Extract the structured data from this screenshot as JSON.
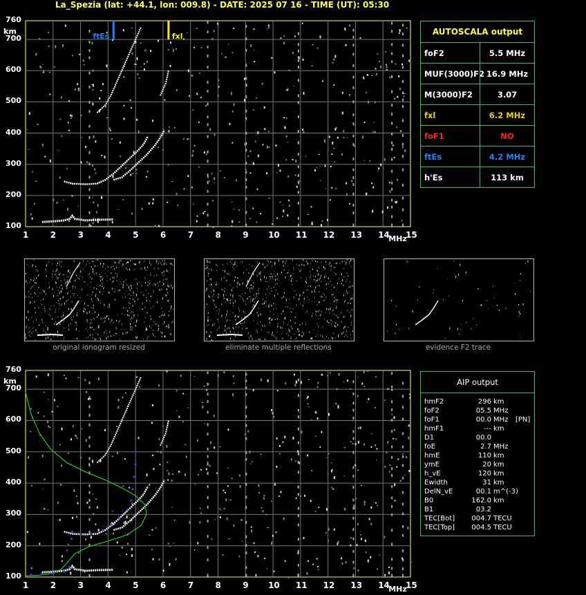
{
  "header": {
    "title": "La_Spezia (lat: +44.1, lon: 009.8) - DATE: 2025 07 16 - TIME (UT): 05:30"
  },
  "axes": {
    "y_unit": "km",
    "x_unit": "MHz",
    "y_ticks": [
      "760",
      "700",
      "600",
      "500",
      "400",
      "300",
      "200",
      "100"
    ],
    "x_ticks": [
      "1",
      "2",
      "3",
      "4",
      "5",
      "6",
      "7",
      "8",
      "9",
      "10",
      "11",
      "12",
      "13",
      "14",
      "15"
    ]
  },
  "markers": {
    "ftEs_label": "ftEs",
    "fxl_label": "fxl",
    "fxl_color": "#ffee00",
    "ftEs_color": "#1e7fff"
  },
  "autoscala": {
    "title": "AUTOSCALA output",
    "rows": [
      {
        "key": "foF2",
        "value": "5.5 MHz",
        "color": "#ffffff"
      },
      {
        "key": "MUF(3000)F2",
        "value": "16.9 MHz",
        "color": "#ffffff"
      },
      {
        "key": "M(3000)F2",
        "value": "3.07",
        "color": "#ffffff"
      },
      {
        "key": "fxl",
        "value": "6.2 MHz",
        "color": "#e8d020"
      },
      {
        "key": "foF1",
        "value": "NO",
        "color": "#ff2020"
      },
      {
        "key": "ftEs",
        "value": "4.2 MHz",
        "color": "#2080ff"
      },
      {
        "key": "h'Es",
        "value": "113",
        "unit": "km",
        "color": "#ffffff"
      }
    ]
  },
  "thumbnails": [
    {
      "caption": "original ionogram resized"
    },
    {
      "caption": "eliminate multiple reflections"
    },
    {
      "caption": "evidence F2 trace"
    }
  ],
  "aip": {
    "title": "AIP output",
    "rows": [
      {
        "k": "hmF2",
        "v": "296",
        "u": "km"
      },
      {
        "k": "foF2",
        "v": "05.5",
        "u": "MHz"
      },
      {
        "k": "foF1",
        "v": "00.0",
        "u": "MHz",
        "x": "[PN]"
      },
      {
        "k": "hmF1",
        "v": "---",
        "u": "km"
      },
      {
        "k": "D1",
        "v": "00.0",
        "u": ""
      },
      {
        "k": "foE",
        "v": "2.7",
        "u": "MHz"
      },
      {
        "k": "hmE",
        "v": "110",
        "u": "km"
      },
      {
        "k": "ymE",
        "v": "20",
        "u": "km"
      },
      {
        "k": "h_vE",
        "v": "120",
        "u": "km"
      },
      {
        "k": "Ewidth",
        "v": "31",
        "u": "km"
      },
      {
        "k": "DelN_vE",
        "v": "00.1",
        "u": "m^(-3)"
      },
      {
        "k": "B0",
        "v": "162.0",
        "u": "km"
      },
      {
        "k": "B1",
        "v": "03.2",
        "u": ""
      },
      {
        "k": "TEC[Bot]",
        "v": "004.7",
        "u": "TECU"
      },
      {
        "k": "TEC[Top]",
        "v": "004.5",
        "u": "TECU"
      }
    ]
  }
}
